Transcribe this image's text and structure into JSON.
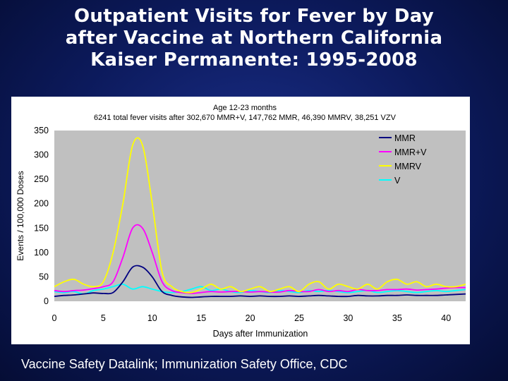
{
  "slide": {
    "title_lines": [
      "Outpatient Visits for Fever by Day",
      "after Vaccine at Northern California",
      "Kaiser Permanente: 1995-2008"
    ],
    "footer": "Vaccine Safety Datalink; Immunization Safety Office, CDC"
  },
  "colors": {
    "background": "#0c1a5c",
    "plot_area": "#c0c0c0",
    "MMR": "#000080",
    "MMR+V": "#ff00ff",
    "MMRV": "#ffff00",
    "V": "#00ffff"
  },
  "chart_data": {
    "type": "line",
    "title": "Age 12-23 months",
    "subtitle": "6241 total fever visits after 302,670 MMR+V, 147,762 MMR, 46,390 MMRV, 38,251 VZV",
    "xlabel": "Days after Immunization",
    "ylabel": "Events / 100,000 Doses",
    "xlim": [
      0,
      42
    ],
    "ylim": [
      0,
      350
    ],
    "xticks": [
      0,
      5,
      10,
      15,
      20,
      25,
      30,
      35,
      40
    ],
    "yticks": [
      0,
      50,
      100,
      150,
      200,
      250,
      300,
      350
    ],
    "legend_position": "top-right",
    "x": [
      0,
      1,
      2,
      3,
      4,
      5,
      6,
      7,
      8,
      9,
      10,
      11,
      12,
      13,
      14,
      15,
      16,
      17,
      18,
      19,
      20,
      21,
      22,
      23,
      24,
      25,
      26,
      27,
      28,
      29,
      30,
      31,
      32,
      33,
      34,
      35,
      36,
      37,
      38,
      39,
      40,
      41,
      42
    ],
    "series": [
      {
        "name": "MMR",
        "values": [
          10,
          12,
          13,
          15,
          17,
          16,
          18,
          40,
          70,
          70,
          50,
          20,
          12,
          9,
          8,
          9,
          10,
          10,
          10,
          11,
          10,
          11,
          10,
          10,
          11,
          10,
          11,
          12,
          11,
          10,
          10,
          12,
          11,
          11,
          12,
          12,
          13,
          12,
          12,
          12,
          13,
          14,
          15
        ]
      },
      {
        "name": "MMR+V",
        "values": [
          22,
          20,
          22,
          23,
          26,
          30,
          40,
          90,
          150,
          150,
          100,
          40,
          22,
          18,
          16,
          18,
          20,
          19,
          20,
          20,
          19,
          20,
          19,
          19,
          22,
          20,
          20,
          24,
          20,
          22,
          20,
          24,
          22,
          22,
          24,
          24,
          25,
          23,
          24,
          25,
          27,
          28,
          28
        ]
      },
      {
        "name": "MMRV",
        "values": [
          30,
          40,
          45,
          35,
          30,
          40,
          100,
          200,
          320,
          320,
          200,
          60,
          30,
          20,
          18,
          25,
          35,
          25,
          30,
          20,
          25,
          30,
          20,
          25,
          30,
          20,
          35,
          40,
          25,
          35,
          30,
          25,
          35,
          25,
          40,
          45,
          35,
          40,
          30,
          35,
          30,
          30,
          35
        ]
      },
      {
        "name": "V",
        "values": [
          20,
          18,
          20,
          15,
          22,
          25,
          30,
          35,
          25,
          30,
          25,
          20,
          18,
          20,
          25,
          30,
          22,
          25,
          20,
          18,
          22,
          20,
          18,
          22,
          20,
          18,
          22,
          20,
          22,
          20,
          18,
          20,
          22,
          18,
          20,
          22,
          20,
          18,
          20,
          22,
          20,
          22,
          24
        ]
      }
    ]
  }
}
